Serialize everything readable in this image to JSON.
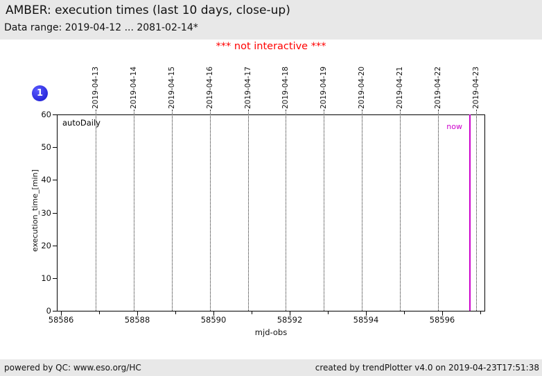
{
  "header": {
    "title": "AMBER: execution times (last 10 days, close-up)",
    "data_range": "Data range: 2019-04-12 ... 2081-02-14*"
  },
  "notice": "*** not interactive ***",
  "badge": {
    "label": "1"
  },
  "footer": {
    "left": "powered by QC: www.eso.org/HC",
    "right": "created by trendPlotter v4.0 on 2019-04-23T17:51:38"
  },
  "colors": {
    "header_bg": "#e8e8e8",
    "notice_red": "#ff0000",
    "now_magenta": "#cc00cc",
    "badge_blue": "#2222dd"
  },
  "chart_data": {
    "type": "scatter",
    "title": "AMBER: execution times (last 10 days, close-up)",
    "xlabel": "mjd-obs",
    "ylabel": "execution_time_[min]",
    "xlim": [
      58585.89,
      58597.11
    ],
    "ylim": [
      0,
      60
    ],
    "grid": "vertical-dotted",
    "legend_position": "none",
    "plot_label": "autoDaily",
    "x_major_ticks": [
      58586,
      58588,
      58590,
      58592,
      58594,
      58596
    ],
    "x_minor_ticks": [
      58587,
      58589,
      58591,
      58593,
      58595,
      58597
    ],
    "y_ticks": [
      0,
      10,
      20,
      30,
      40,
      50,
      60
    ],
    "top_axis_dates": [
      {
        "label": "2019-04-13",
        "mjd": 58586.9
      },
      {
        "label": "2019-04-14",
        "mjd": 58587.9
      },
      {
        "label": "2019-04-15",
        "mjd": 58588.9
      },
      {
        "label": "2019-04-16",
        "mjd": 58589.9
      },
      {
        "label": "2019-04-17",
        "mjd": 58590.9
      },
      {
        "label": "2019-04-18",
        "mjd": 58591.9
      },
      {
        "label": "2019-04-19",
        "mjd": 58592.9
      },
      {
        "label": "2019-04-20",
        "mjd": 58593.9
      },
      {
        "label": "2019-04-21",
        "mjd": 58594.9
      },
      {
        "label": "2019-04-22",
        "mjd": 58595.9
      },
      {
        "label": "2019-04-23",
        "mjd": 58596.9
      }
    ],
    "now_marker": {
      "label": "now",
      "mjd": 58596.73
    },
    "series": []
  }
}
